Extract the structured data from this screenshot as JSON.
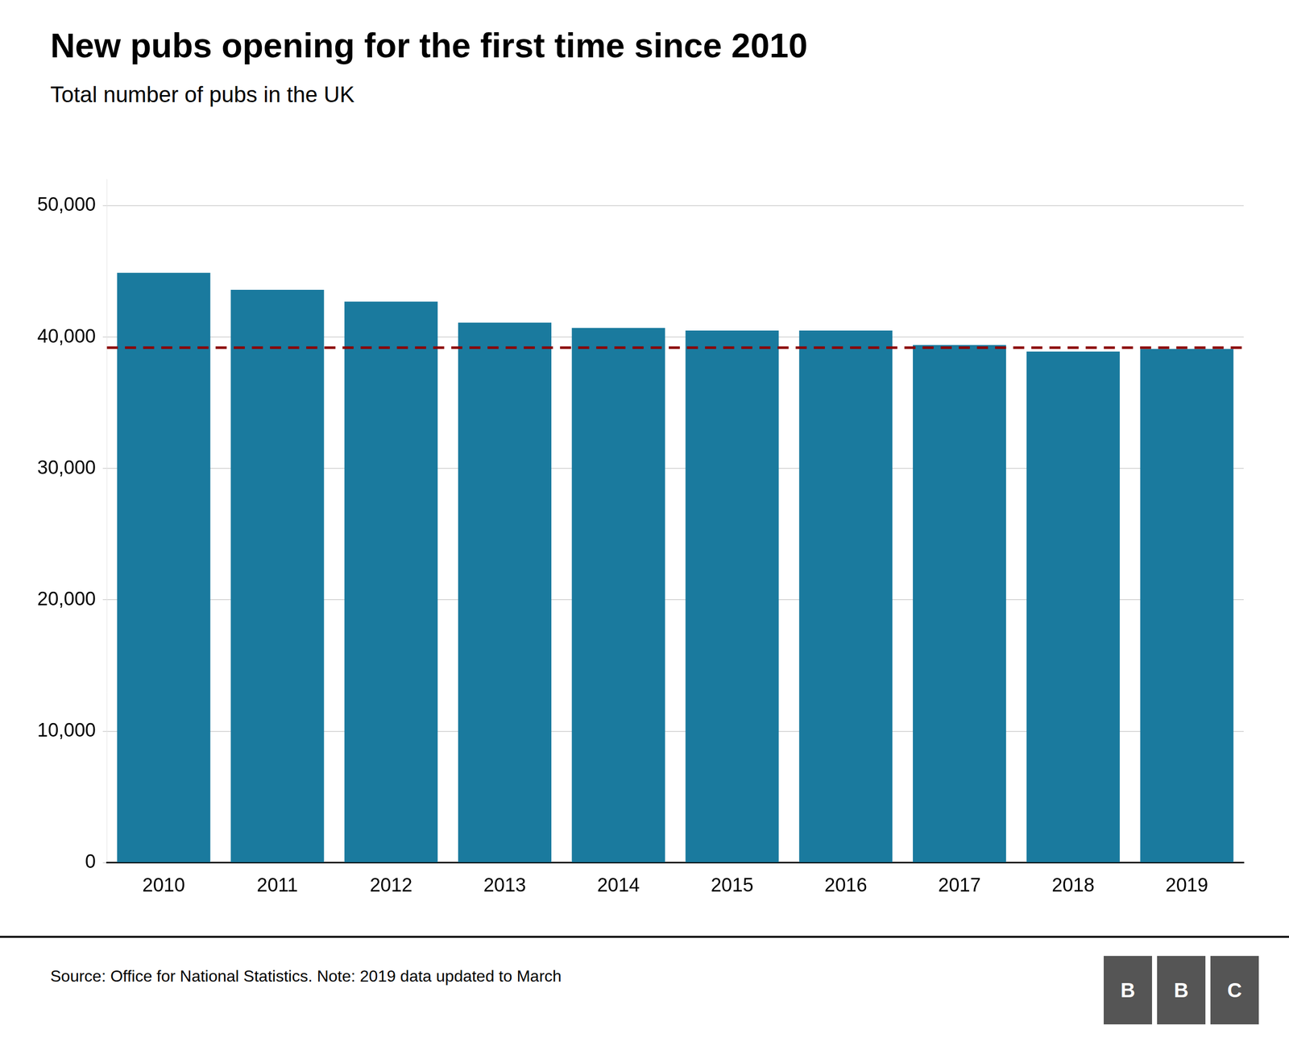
{
  "chart_data": {
    "type": "bar",
    "title": "New pubs opening for the first time since 2010",
    "subtitle": "Total number of pubs in the UK",
    "footer": "Source: Office for National Statistics. Note: 2019 data updated to March",
    "logo": {
      "letters": [
        "B",
        "B",
        "C"
      ],
      "color": "#555555",
      "text_color": "#ffffff"
    },
    "categories": [
      "2010",
      "2011",
      "2012",
      "2013",
      "2014",
      "2015",
      "2016",
      "2017",
      "2018",
      "2019"
    ],
    "values": [
      44900,
      43600,
      42700,
      41100,
      40700,
      40500,
      40500,
      39400,
      38900,
      39100
    ],
    "color": "#1a7a9e",
    "reference_line": {
      "value": 39200,
      "color": "#8b0000",
      "line_style": "dashed"
    },
    "ylim": [
      0,
      52000
    ],
    "yticks": [
      0,
      {
        "value": 10000,
        "label": "10,000"
      },
      {
        "value": 20000,
        "label": "20,000"
      },
      {
        "value": 30000,
        "label": "30,000"
      },
      {
        "value": 40000,
        "label": "40,000"
      },
      {
        "value": 50000,
        "label": "50,000"
      }
    ],
    "grid": true
  }
}
